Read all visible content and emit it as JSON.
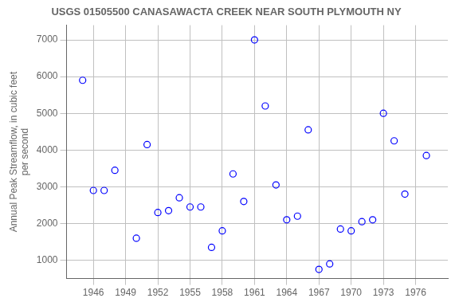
{
  "chart_data": {
    "type": "scatter",
    "title": "USGS 01505500 CANASAWACTA CREEK NEAR SOUTH PLYMOUTH NY",
    "ylabel": "Annual Peak Streamflow, in cubic feet\nper second",
    "x": [
      1945,
      1946,
      1947,
      1948,
      1950,
      1951,
      1952,
      1953,
      1954,
      1955,
      1956,
      1957,
      1958,
      1959,
      1960,
      1961,
      1962,
      1963,
      1964,
      1965,
      1966,
      1967,
      1968,
      1969,
      1970,
      1971,
      1972,
      1973,
      1974,
      1975,
      1977
    ],
    "values": [
      5900,
      2900,
      2900,
      3450,
      1600,
      4150,
      2300,
      2350,
      2700,
      2450,
      2450,
      1350,
      1800,
      3350,
      2600,
      7000,
      5200,
      3050,
      2100,
      2200,
      4550,
      750,
      900,
      1850,
      1800,
      2050,
      2100,
      5000,
      4250,
      2800,
      3850
    ],
    "xlim": [
      1943.5,
      1979
    ],
    "ylim": [
      500,
      7400
    ],
    "xticks": [
      1946,
      1949,
      1952,
      1955,
      1958,
      1961,
      1964,
      1967,
      1970,
      1973,
      1976
    ],
    "yticks": [
      1000,
      2000,
      3000,
      4000,
      5000,
      6000,
      7000
    ],
    "color": "blue",
    "marker": "circle",
    "grid": true
  }
}
